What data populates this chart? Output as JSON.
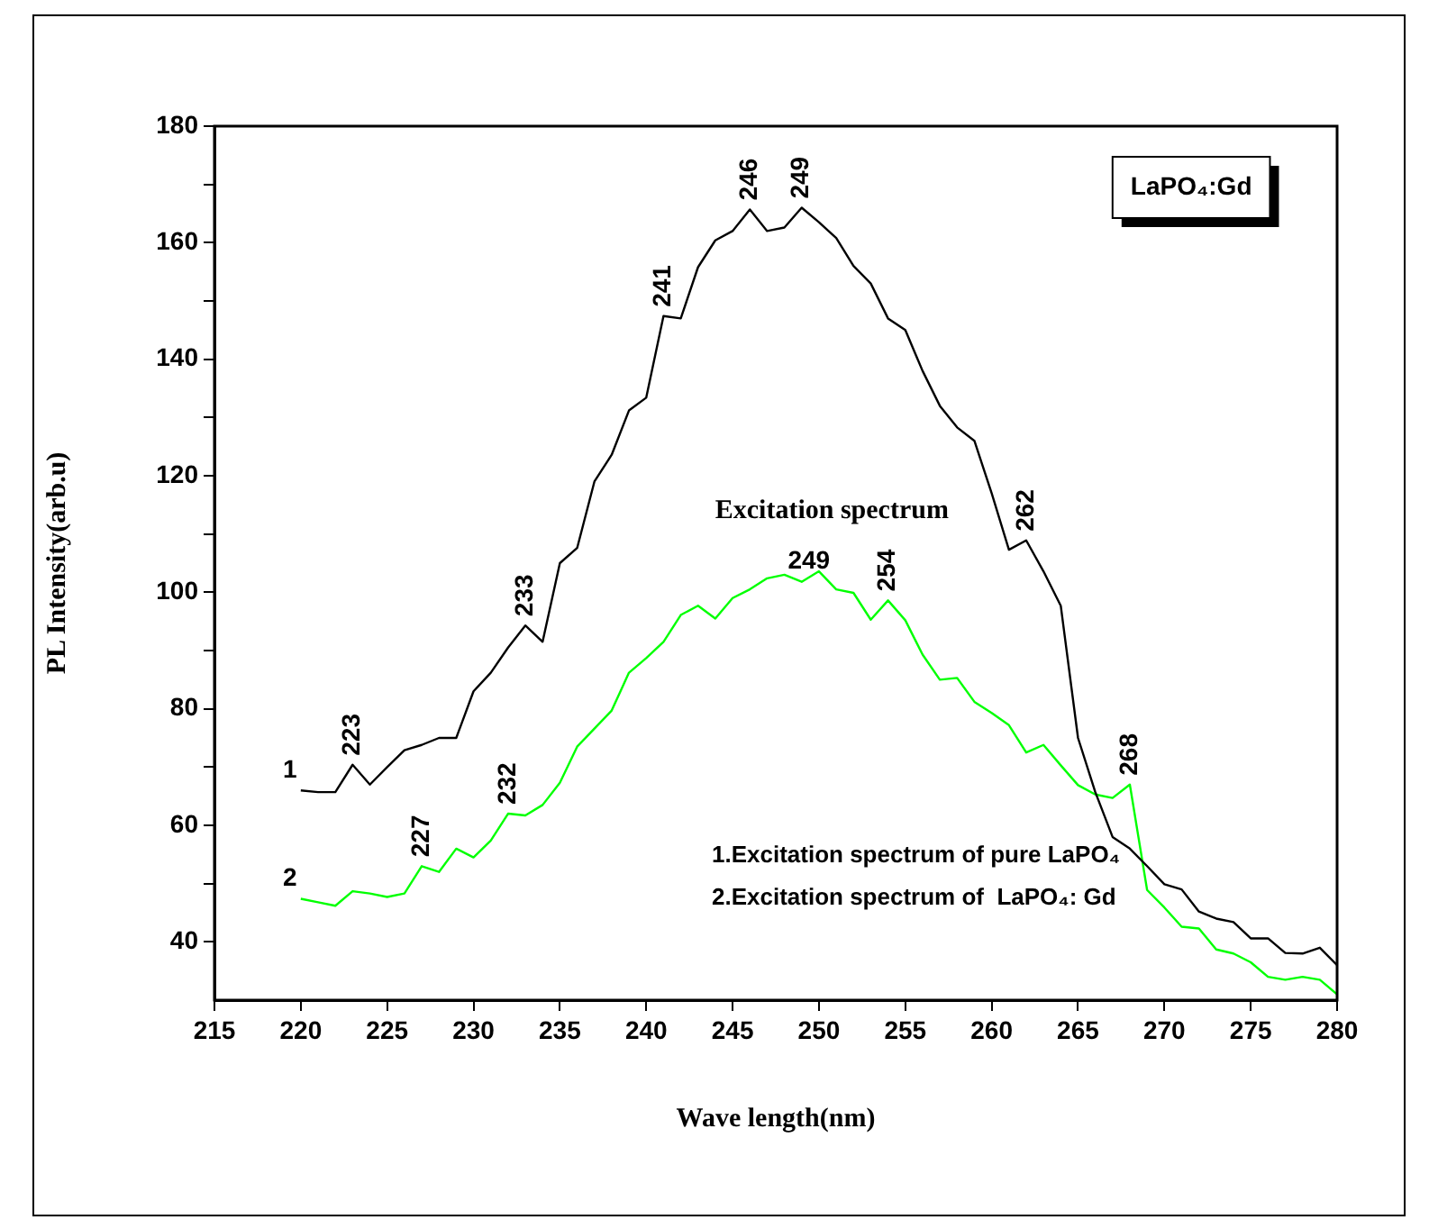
{
  "chart_data": {
    "type": "line",
    "xlabel": "Wave length(nm)",
    "ylabel": "PL Intensity(arb.u)",
    "x": [
      220,
      221,
      222,
      223,
      224,
      225,
      226,
      227,
      228,
      229,
      230,
      231,
      232,
      233,
      234,
      235,
      236,
      237,
      238,
      239,
      240,
      241,
      242,
      243,
      244,
      245,
      246,
      247,
      248,
      249,
      250,
      251,
      252,
      253,
      254,
      255,
      256,
      257,
      258,
      259,
      260,
      261,
      262,
      263,
      264,
      265,
      266,
      267,
      268,
      269,
      270,
      271,
      272,
      273,
      274,
      275,
      276,
      277,
      278,
      279,
      280
    ],
    "series": [
      {
        "color": "#000000",
        "values": [
          66,
          65.7,
          65.7,
          70.4,
          67,
          70,
          72.9,
          73.8,
          75,
          75,
          83,
          86.2,
          90.5,
          94.3,
          91.5,
          105,
          107.6,
          119,
          123.6,
          131.2,
          133.4,
          147.4,
          147,
          155.8,
          160.4,
          162,
          165.7,
          162,
          162.6,
          166,
          163.5,
          160.8,
          156,
          153,
          147,
          145,
          138,
          132,
          128.3,
          126,
          117,
          107.3,
          108.9,
          103.6,
          97.7,
          75,
          65.7,
          58,
          56,
          53,
          49.9,
          49,
          45.2,
          44,
          43.4,
          40.6,
          40.6,
          38.1,
          38,
          39,
          36
        ]
      },
      {
        "color": "#00ff00",
        "values": [
          47.4,
          46.8,
          46.2,
          48.7,
          48.3,
          47.7,
          48.3,
          53,
          52,
          56,
          54.5,
          57.4,
          62,
          61.7,
          63.5,
          67.3,
          73.5,
          76.6,
          79.7,
          86.2,
          88.7,
          91.5,
          96.1,
          97.7,
          95.5,
          99,
          100.5,
          102.4,
          103,
          101.8,
          103.6,
          100.5,
          99.9,
          95.3,
          98.6,
          95.2,
          89.3,
          85,
          85.3,
          81.2,
          79.3,
          77.2,
          72.5,
          73.8,
          70.3,
          66.9,
          65.3,
          64.7,
          67,
          48.9,
          45.9,
          42.6,
          42.3,
          38.7,
          38,
          36.5,
          34,
          33.5,
          34,
          33.5,
          31
        ]
      }
    ],
    "xlim": [
      215,
      280
    ],
    "xticks": [
      215,
      220,
      225,
      230,
      235,
      240,
      245,
      250,
      255,
      260,
      265,
      270,
      275,
      280
    ],
    "ylim": [
      30,
      180
    ],
    "yticks": [
      40,
      {
        "value": 50,
        "label": null
      },
      60,
      {
        "value": 70,
        "label": null
      },
      80,
      {
        "value": 90,
        "label": null
      },
      100,
      {
        "value": 110,
        "label": null
      },
      120,
      {
        "value": 130,
        "label": null
      },
      140,
      {
        "value": 150,
        "label": null
      },
      160,
      {
        "value": 170,
        "label": null
      },
      180
    ],
    "grid": false,
    "legend": false,
    "marker": "none",
    "line_style": "solid",
    "annotations": [
      "LaPO₄:Gd",
      "Excitation spectrum",
      "1.Excitation spectrum of pure LaPO₄",
      "2.Excitation spectrum of  LaPO₄: Gd",
      {
        "text": "1",
        "x": 220,
        "y": 66
      },
      {
        "text": "2",
        "x": 220,
        "y": 47.4
      },
      {
        "text": "223",
        "x": 223,
        "y": 70.4
      },
      {
        "text": "233",
        "x": 233,
        "y": 94.3
      },
      {
        "text": "241",
        "x": 241,
        "y": 147.4
      },
      {
        "text": "246",
        "x": 246,
        "y": 165.7
      },
      {
        "text": "249",
        "x": 249,
        "y": 166
      },
      {
        "text": "262",
        "x": 262,
        "y": 108.9
      },
      {
        "text": "227",
        "x": 227,
        "y": 53
      },
      {
        "text": "232",
        "x": 232,
        "y": 62
      },
      {
        "text": "249",
        "x": 249,
        "y": 101.8
      },
      {
        "text": "254",
        "x": 254,
        "y": 98.6
      },
      {
        "text": "268",
        "x": 268,
        "y": 67
      }
    ]
  }
}
